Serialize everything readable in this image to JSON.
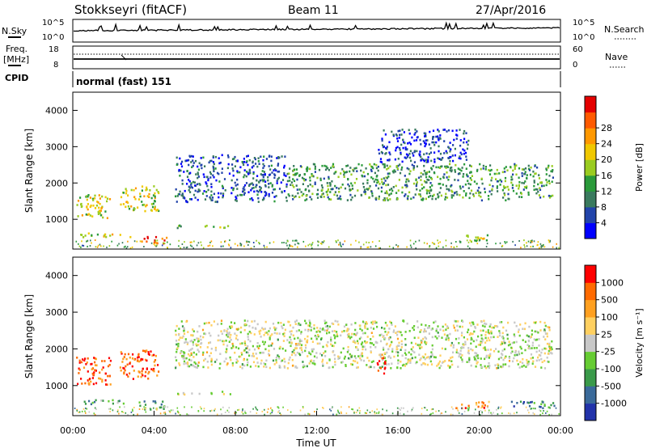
{
  "header": {
    "station": "Stokkseyri (fitACF)",
    "beam": "Beam 11",
    "date": "27/Apr/2016"
  },
  "noise_panel": {
    "left_label": "N.Sky",
    "right_label": "N.Search",
    "left_ticks": [
      "10^5",
      "10^0"
    ],
    "right_ticks": [
      "10^5",
      "10^0"
    ]
  },
  "freq_panel": {
    "left_label_1": "Freq.",
    "left_label_2": "[MHz]",
    "right_label": "Nave",
    "left_ticks": [
      "18",
      "8"
    ],
    "right_ticks": [
      "60",
      "0"
    ]
  },
  "cpid_panel": {
    "label": "CPID",
    "value": "normal (fast) 151"
  },
  "x_axis": {
    "label": "Time UT",
    "ticks": [
      "00:00",
      "04:00",
      "08:00",
      "12:00",
      "16:00",
      "20:00",
      "00:00"
    ]
  },
  "chart_data": [
    {
      "type": "heatmap",
      "title": "",
      "xlabel": "Time UT",
      "ylabel": "Slant Range [km]",
      "x_range_hours": [
        0,
        24
      ],
      "y_range_km": [
        180,
        4500
      ],
      "y_ticks": [
        1000,
        2000,
        3000,
        4000
      ],
      "colorbar": {
        "label": "Power [dB]",
        "ticks": [
          "4",
          "8",
          "12",
          "16",
          "20",
          "24",
          "28"
        ],
        "colors": [
          "#0000ff",
          "#2244aa",
          "#3a7a5e",
          "#2a9a3a",
          "#9acc20",
          "#f0c800",
          "#ff9800",
          "#ff5a00",
          "#e40000"
        ]
      },
      "echo_regions": [
        {
          "t": [
            0.15,
            1.9
          ],
          "r": [
            1050,
            1700
          ],
          "level": 0.55
        },
        {
          "t": [
            2.3,
            4.2
          ],
          "r": [
            1250,
            1950
          ],
          "level": 0.55
        },
        {
          "t": [
            0.3,
            2.9
          ],
          "r": [
            520,
            640
          ],
          "level": 0.6
        },
        {
          "t": [
            3.2,
            4.6
          ],
          "r": [
            350,
            560
          ],
          "level": 0.85
        },
        {
          "t": [
            5.0,
            7.8
          ],
          "r": [
            780,
            860
          ],
          "level": 0.45
        },
        {
          "t": [
            5.0,
            10.5
          ],
          "r": [
            1500,
            2800
          ],
          "level": 0.2
        },
        {
          "t": [
            10.5,
            23.6
          ],
          "r": [
            1550,
            2550
          ],
          "level": 0.35
        },
        {
          "t": [
            18.8,
            20.5
          ],
          "r": [
            400,
            600
          ],
          "level": 0.5
        },
        {
          "t": [
            15.0,
            19.5
          ],
          "r": [
            2600,
            3500
          ],
          "level": 0.15
        }
      ]
    },
    {
      "type": "heatmap",
      "title": "",
      "xlabel": "Time UT",
      "ylabel": "Slant Range [km]",
      "x_range_hours": [
        0,
        24
      ],
      "y_range_km": [
        180,
        4500
      ],
      "y_ticks": [
        1000,
        2000,
        3000,
        4000
      ],
      "colorbar": {
        "label": "Velocity [m s⁻¹]",
        "ticks": [
          "1000",
          "500",
          "100",
          "25",
          "-25",
          "-100",
          "-500",
          "-1000"
        ],
        "colors": [
          "#2233aa",
          "#3a6a9a",
          "#3a9a4a",
          "#66cc33",
          "#c8c8c8",
          "#ffd060",
          "#ffa020",
          "#ff6a00",
          "#ff0000"
        ]
      },
      "echo_regions": [
        {
          "t": [
            0.15,
            1.9
          ],
          "r": [
            1050,
            1800
          ],
          "level": 0.85
        },
        {
          "t": [
            2.3,
            4.2
          ],
          "r": [
            1200,
            2000
          ],
          "level": 0.85
        },
        {
          "t": [
            0.3,
            2.9
          ],
          "r": [
            520,
            640
          ],
          "level": 0.35
        },
        {
          "t": [
            3.2,
            4.6
          ],
          "r": [
            350,
            600
          ],
          "level": 0.3
        },
        {
          "t": [
            5.0,
            7.8
          ],
          "r": [
            780,
            860
          ],
          "level": 0.5
        },
        {
          "t": [
            5.0,
            23.6
          ],
          "r": [
            1500,
            2800
          ],
          "level": 0.5
        },
        {
          "t": [
            14.9,
            15.4
          ],
          "r": [
            1300,
            1800
          ],
          "level": 0.95
        },
        {
          "t": [
            18.8,
            20.5
          ],
          "r": [
            400,
            600
          ],
          "level": 0.75
        },
        {
          "t": [
            21.5,
            23.8
          ],
          "r": [
            400,
            600
          ],
          "level": 0.25
        }
      ]
    }
  ]
}
